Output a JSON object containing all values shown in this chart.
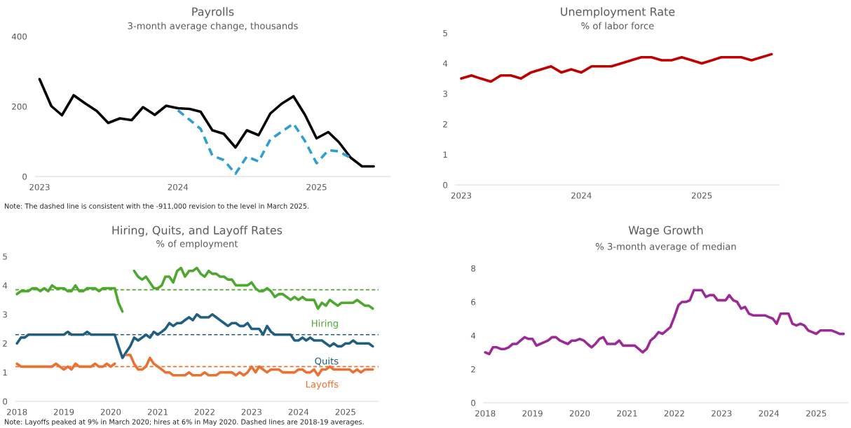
{
  "chart_data": [
    {
      "type": "line",
      "title": "Payrolls",
      "subtitle": "3-month average change, thousands",
      "x": [
        "2023-01",
        "2023-02",
        "2023-03",
        "2023-04",
        "2023-05",
        "2023-06",
        "2023-07",
        "2023-08",
        "2023-09",
        "2023-10",
        "2023-11",
        "2023-12",
        "2024-01",
        "2024-02",
        "2024-03",
        "2024-04",
        "2024-05",
        "2024-06",
        "2024-07",
        "2024-08",
        "2024-09",
        "2024-10",
        "2024-11",
        "2024-12",
        "2025-01",
        "2025-02",
        "2025-03",
        "2025-04",
        "2025-05",
        "2025-06"
      ],
      "series": [
        {
          "color": "#000000",
          "line_style": "solid",
          "values": [
            278,
            201,
            175,
            232,
            209,
            187,
            153,
            166,
            161,
            198,
            176,
            202,
            195,
            193,
            185,
            132,
            122,
            83,
            132,
            118,
            180,
            208,
            229,
            177,
            109,
            127,
            98,
            54,
            29,
            29
          ]
        },
        {
          "color": "#2e9fd0",
          "line_style": "dashed",
          "x": [
            "2024-01",
            "2024-02",
            "2024-03",
            "2024-04",
            "2024-05",
            "2024-06",
            "2024-07",
            "2024-08",
            "2024-09",
            "2024-10",
            "2024-11",
            "2024-12",
            "2025-01",
            "2025-02",
            "2025-03",
            "2025-04"
          ],
          "values": [
            189,
            162,
            136,
            60,
            47,
            8,
            57,
            43,
            106,
            128,
            151,
            102,
            38,
            75,
            72,
            53
          ]
        }
      ],
      "xlim": [
        "2022-12-20",
        "2025-07-15"
      ],
      "xticks": [
        "2023",
        "2024",
        "2025"
      ],
      "ylim": [
        0,
        400
      ],
      "yticks": [
        0,
        200,
        400
      ],
      "grid": false,
      "legend": false,
      "annotations": [
        "Note: The dashed line is consistent with the -911,000 revision to the level in March 2025."
      ]
    },
    {
      "type": "line",
      "title": "Unemployment Rate",
      "subtitle": "% of labor force",
      "x": [
        "2023-01",
        "2023-02",
        "2023-03",
        "2023-04",
        "2023-05",
        "2023-06",
        "2023-07",
        "2023-08",
        "2023-09",
        "2023-10",
        "2023-11",
        "2023-12",
        "2024-01",
        "2024-02",
        "2024-03",
        "2024-04",
        "2024-05",
        "2024-06",
        "2024-07",
        "2024-08",
        "2024-09",
        "2024-10",
        "2024-11",
        "2024-12",
        "2025-01",
        "2025-02",
        "2025-03",
        "2025-04",
        "2025-05",
        "2025-06",
        "2025-07",
        "2025-08"
      ],
      "series": [
        {
          "color": "#c00000",
          "line_style": "solid",
          "values": [
            3.5,
            3.6,
            3.5,
            3.4,
            3.6,
            3.6,
            3.5,
            3.7,
            3.8,
            3.9,
            3.7,
            3.8,
            3.7,
            3.9,
            3.9,
            3.9,
            4.0,
            4.1,
            4.2,
            4.2,
            4.1,
            4.1,
            4.2,
            4.1,
            4.0,
            4.1,
            4.2,
            4.2,
            4.2,
            4.1,
            4.2,
            4.3
          ]
        }
      ],
      "xlim": [
        "2022-12-15",
        "2025-08-25"
      ],
      "xticks": [
        "2023",
        "2024",
        "2025"
      ],
      "ylim": [
        0,
        5
      ],
      "yticks": [
        0,
        1,
        2,
        3,
        4,
        5
      ],
      "grid": false,
      "legend": false
    },
    {
      "type": "line",
      "title": "Hiring, Quits, and Layoff Rates",
      "subtitle": "% of employment",
      "x": [
        "2018-01",
        "2018-02",
        "2018-03",
        "2018-04",
        "2018-05",
        "2018-06",
        "2018-07",
        "2018-08",
        "2018-09",
        "2018-10",
        "2018-11",
        "2018-12",
        "2019-01",
        "2019-02",
        "2019-03",
        "2019-04",
        "2019-05",
        "2019-06",
        "2019-07",
        "2019-08",
        "2019-09",
        "2019-10",
        "2019-11",
        "2019-12",
        "2020-01",
        "2020-02",
        "2020-03",
        "2020-04",
        "2020-05",
        "2020-06",
        "2020-07",
        "2020-08",
        "2020-09",
        "2020-10",
        "2020-11",
        "2020-12",
        "2021-01",
        "2021-02",
        "2021-03",
        "2021-04",
        "2021-05",
        "2021-06",
        "2021-07",
        "2021-08",
        "2021-09",
        "2021-10",
        "2021-11",
        "2021-12",
        "2022-01",
        "2022-02",
        "2022-03",
        "2022-04",
        "2022-05",
        "2022-06",
        "2022-07",
        "2022-08",
        "2022-09",
        "2022-10",
        "2022-11",
        "2022-12",
        "2023-01",
        "2023-02",
        "2023-03",
        "2023-04",
        "2023-05",
        "2023-06",
        "2023-07",
        "2023-08",
        "2023-09",
        "2023-10",
        "2023-11",
        "2023-12",
        "2024-01",
        "2024-02",
        "2024-03",
        "2024-04",
        "2024-05",
        "2024-06",
        "2024-07",
        "2024-08",
        "2024-09",
        "2024-10",
        "2024-11",
        "2024-12",
        "2025-01",
        "2025-02",
        "2025-03",
        "2025-04",
        "2025-05",
        "2025-06",
        "2025-07",
        "2025-08"
      ],
      "series": [
        {
          "name": "Hiring",
          "color": "#4ea72e",
          "line_style": "solid",
          "values": [
            3.7,
            3.8,
            3.8,
            3.8,
            3.9,
            3.9,
            3.8,
            3.9,
            3.8,
            4.0,
            3.9,
            3.9,
            3.9,
            3.8,
            3.8,
            4.0,
            3.8,
            3.8,
            3.9,
            3.9,
            3.9,
            3.8,
            3.9,
            3.9,
            3.9,
            3.9,
            3.4,
            3.1,
            null,
            null,
            4.5,
            4.3,
            4.2,
            4.3,
            4.1,
            3.9,
            3.9,
            4.0,
            4.3,
            4.3,
            4.1,
            4.5,
            4.6,
            4.3,
            4.5,
            4.5,
            4.6,
            4.4,
            4.3,
            4.5,
            4.4,
            4.4,
            4.3,
            4.3,
            4.2,
            4.2,
            4.0,
            4.0,
            4.0,
            4.0,
            4.1,
            3.9,
            3.8,
            3.8,
            3.9,
            3.8,
            3.6,
            3.7,
            3.7,
            3.6,
            3.5,
            3.6,
            3.5,
            3.6,
            3.5,
            3.5,
            3.5,
            3.2,
            3.4,
            3.3,
            3.5,
            3.4,
            3.3,
            3.4,
            3.4,
            3.4,
            3.4,
            3.5,
            3.4,
            3.3,
            3.3,
            3.2
          ]
        },
        {
          "name": "Quits",
          "color": "#215f80",
          "line_style": "solid",
          "values": [
            2.0,
            2.2,
            2.2,
            2.3,
            2.3,
            2.3,
            2.3,
            2.3,
            2.3,
            2.3,
            2.3,
            2.3,
            2.3,
            2.4,
            2.3,
            2.3,
            2.3,
            2.3,
            2.4,
            2.3,
            2.3,
            2.3,
            2.3,
            2.3,
            2.3,
            2.3,
            1.9,
            1.5,
            1.7,
            1.9,
            2.2,
            2.1,
            2.2,
            2.3,
            2.2,
            2.4,
            2.3,
            2.4,
            2.5,
            2.7,
            2.6,
            2.7,
            2.7,
            2.8,
            2.9,
            2.8,
            3.0,
            2.9,
            2.9,
            2.9,
            3.0,
            2.9,
            2.8,
            2.7,
            2.6,
            2.7,
            2.7,
            2.6,
            2.6,
            2.7,
            2.5,
            2.5,
            2.5,
            2.3,
            2.6,
            2.4,
            2.3,
            2.3,
            2.3,
            2.3,
            2.3,
            2.1,
            2.1,
            2.2,
            2.1,
            2.2,
            2.1,
            2.1,
            2.1,
            2.0,
            1.9,
            2.0,
            1.9,
            1.9,
            2.0,
            2.0,
            2.1,
            2.0,
            2.0,
            2.0,
            2.0,
            1.9
          ]
        },
        {
          "name": "Layoffs",
          "color": "#e97132",
          "line_style": "solid",
          "values": [
            1.3,
            1.2,
            1.2,
            1.2,
            1.2,
            1.2,
            1.2,
            1.2,
            1.2,
            1.2,
            1.3,
            1.2,
            1.1,
            1.2,
            1.1,
            1.3,
            1.2,
            1.2,
            1.2,
            1.2,
            1.3,
            1.2,
            1.2,
            1.3,
            1.2,
            1.3,
            null,
            null,
            1.6,
            1.6,
            1.3,
            1.1,
            1.1,
            1.2,
            1.5,
            1.3,
            1.2,
            1.1,
            1.0,
            1.0,
            0.9,
            0.9,
            0.9,
            0.9,
            1.0,
            0.9,
            0.9,
            0.9,
            1.0,
            0.9,
            0.9,
            0.9,
            1.0,
            1.0,
            1.0,
            1.0,
            0.9,
            1.0,
            0.9,
            1.0,
            1.2,
            1.0,
            1.2,
            1.1,
            1.0,
            1.1,
            1.1,
            1.1,
            1.0,
            1.0,
            1.0,
            1.0,
            1.1,
            1.1,
            1.0,
            1.0,
            1.1,
            0.9,
            1.1,
            1.1,
            1.2,
            1.1,
            1.1,
            1.1,
            1.1,
            1.1,
            1.0,
            1.1,
            1.0,
            1.1,
            1.1,
            1.1
          ]
        }
      ],
      "ref_lines": [
        {
          "axis": "y",
          "value": 3.85,
          "color": "#4ea72e",
          "line_style": "dashed"
        },
        {
          "axis": "y",
          "value": 2.3,
          "color": "#215f80",
          "line_style": "dashed"
        },
        {
          "axis": "y",
          "value": 1.2,
          "color": "#e97132",
          "line_style": "dashed"
        }
      ],
      "xlim": [
        "2017-12-20",
        "2025-09-15"
      ],
      "xticks": [
        "2018",
        "2019",
        "2020",
        "2021",
        "2022",
        "2023",
        "2024",
        "2025"
      ],
      "ylim": [
        0,
        5
      ],
      "yticks": [
        0,
        1,
        2,
        3,
        4,
        5
      ],
      "grid": false,
      "legend": false,
      "annotations": [
        "Note: Layoffs peaked at 9% in March 2020; hires at 6% in May 2020. Dashed lines are 2018-19 averages."
      ]
    },
    {
      "type": "line",
      "title": "Wage Growth",
      "subtitle": "% 3-month average of median",
      "x": [
        "2018-01",
        "2018-02",
        "2018-03",
        "2018-04",
        "2018-05",
        "2018-06",
        "2018-07",
        "2018-08",
        "2018-09",
        "2018-10",
        "2018-11",
        "2018-12",
        "2019-01",
        "2019-02",
        "2019-03",
        "2019-04",
        "2019-05",
        "2019-06",
        "2019-07",
        "2019-08",
        "2019-09",
        "2019-10",
        "2019-11",
        "2019-12",
        "2020-01",
        "2020-02",
        "2020-03",
        "2020-04",
        "2020-05",
        "2020-06",
        "2020-07",
        "2020-08",
        "2020-09",
        "2020-10",
        "2020-11",
        "2020-12",
        "2021-01",
        "2021-02",
        "2021-03",
        "2021-04",
        "2021-05",
        "2021-06",
        "2021-07",
        "2021-08",
        "2021-09",
        "2021-10",
        "2021-11",
        "2021-12",
        "2022-01",
        "2022-02",
        "2022-03",
        "2022-04",
        "2022-05",
        "2022-06",
        "2022-07",
        "2022-08",
        "2022-09",
        "2022-10",
        "2022-11",
        "2022-12",
        "2023-01",
        "2023-02",
        "2023-03",
        "2023-04",
        "2023-05",
        "2023-06",
        "2023-07",
        "2023-08",
        "2023-09",
        "2023-10",
        "2023-11",
        "2023-12",
        "2024-01",
        "2024-02",
        "2024-03",
        "2024-04",
        "2024-05",
        "2024-06",
        "2024-07",
        "2024-08",
        "2024-09",
        "2024-10",
        "2024-11",
        "2024-12",
        "2025-01",
        "2025-02",
        "2025-03",
        "2025-04",
        "2025-05",
        "2025-06",
        "2025-07",
        "2025-08"
      ],
      "series": [
        {
          "color": "#9c2a96",
          "line_style": "solid",
          "values": [
            3.0,
            2.9,
            3.3,
            3.3,
            3.2,
            3.2,
            3.3,
            3.5,
            3.5,
            3.7,
            3.9,
            3.8,
            3.8,
            3.4,
            3.5,
            3.6,
            3.7,
            3.9,
            3.9,
            3.7,
            3.6,
            3.5,
            3.7,
            3.7,
            3.8,
            3.7,
            3.5,
            3.3,
            3.5,
            3.8,
            3.9,
            3.5,
            3.5,
            3.5,
            3.7,
            3.4,
            3.4,
            3.4,
            3.4,
            3.2,
            3.0,
            3.2,
            3.7,
            3.9,
            4.2,
            4.1,
            4.3,
            4.5,
            5.1,
            5.8,
            6.0,
            6.0,
            6.1,
            6.7,
            6.7,
            6.7,
            6.3,
            6.4,
            6.4,
            6.1,
            6.1,
            6.1,
            6.4,
            6.1,
            6.0,
            5.6,
            5.7,
            5.3,
            5.2,
            5.2,
            5.2,
            5.2,
            5.1,
            5.0,
            4.7,
            5.3,
            5.3,
            5.3,
            4.7,
            4.6,
            4.7,
            4.6,
            4.3,
            4.2,
            4.1,
            4.3,
            4.3,
            4.3,
            4.3,
            4.2,
            4.1,
            4.1
          ]
        }
      ],
      "xlim": [
        "2017-12-20",
        "2025-09-05"
      ],
      "xticks": [
        "2018",
        "2019",
        "2020",
        "2021",
        "2022",
        "2023",
        "2024",
        "2025"
      ],
      "ylim": [
        0,
        8
      ],
      "yticks": [
        0,
        2,
        4,
        6,
        8
      ],
      "grid": false,
      "legend": false
    }
  ]
}
